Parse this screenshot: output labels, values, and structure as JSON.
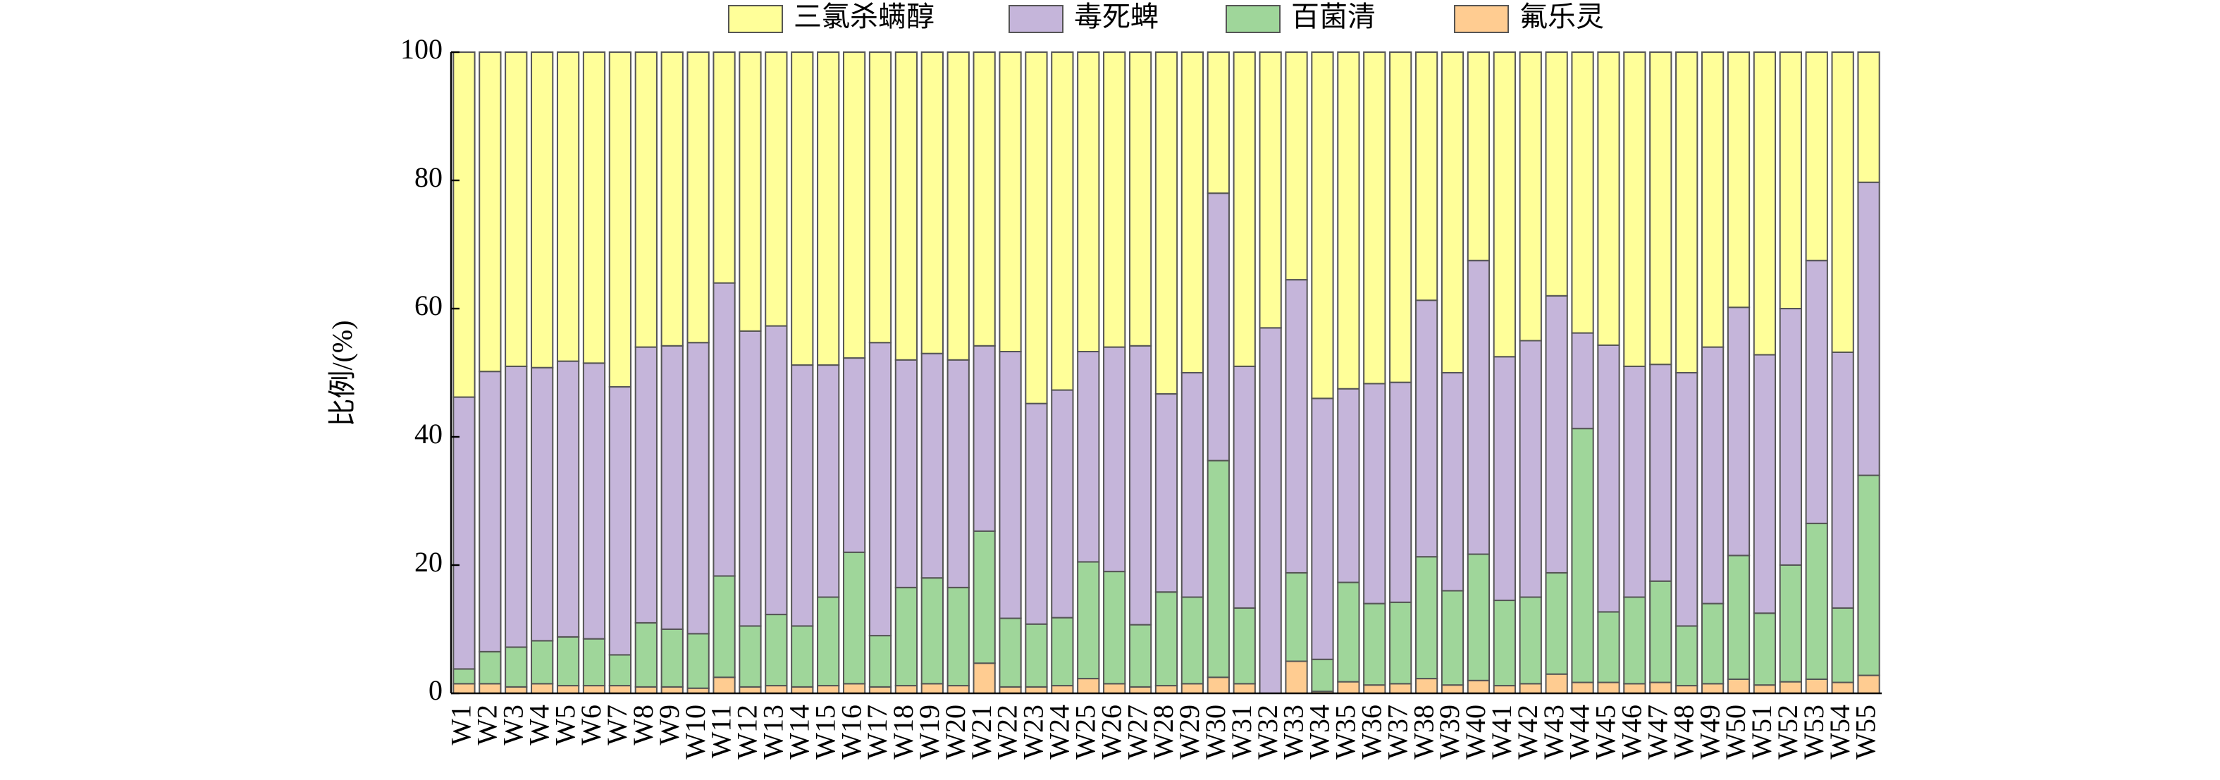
{
  "chart_data": {
    "type": "stacked_bar",
    "y_label": "比例/(%)",
    "categories": [
      "W1",
      "W2",
      "W3",
      "W4",
      "W5",
      "W6",
      "W7",
      "W8",
      "W9",
      "W10",
      "W11",
      "W12",
      "W13",
      "W14",
      "W15",
      "W16",
      "W17",
      "W18",
      "W19",
      "W20",
      "W21",
      "W22",
      "W23",
      "W24",
      "W25",
      "W26",
      "W27",
      "W28",
      "W29",
      "W30",
      "W31",
      "W32",
      "W33",
      "W34",
      "W35",
      "W36",
      "W37",
      "W38",
      "W39",
      "W40",
      "W41",
      "W42",
      "W43",
      "W44",
      "W45",
      "W46",
      "W47",
      "W48",
      "W49",
      "W50",
      "W51",
      "W52",
      "W53",
      "W54",
      "W55"
    ],
    "series": [
      {
        "name": "三氯杀螨醇",
        "color": "#ffff99",
        "values": [
          53.8,
          49.8,
          49.0,
          49.2,
          48.2,
          48.5,
          52.2,
          46.0,
          45.8,
          45.3,
          36.0,
          43.5,
          42.7,
          48.8,
          48.8,
          47.7,
          45.3,
          48.0,
          47.0,
          48.0,
          45.8,
          46.7,
          54.8,
          52.7,
          46.7,
          46.0,
          45.8,
          53.3,
          50.0,
          22.0,
          49.0,
          43.0,
          35.5,
          54.0,
          52.5,
          51.7,
          51.5,
          38.7,
          50.0,
          32.5,
          47.5,
          45.0,
          38.0,
          43.8,
          45.7,
          49.0,
          48.7,
          50.0,
          46.0,
          39.8,
          47.2,
          40.0,
          32.5,
          46.8,
          20.3
        ]
      },
      {
        "name": "毒死蜱",
        "color": "#c5b5da",
        "values": [
          42.4,
          43.7,
          43.8,
          42.6,
          43.0,
          43.0,
          41.8,
          43.0,
          44.2,
          45.4,
          45.7,
          46.0,
          45.0,
          40.7,
          36.2,
          30.3,
          45.7,
          35.5,
          35.0,
          35.5,
          28.9,
          41.6,
          34.4,
          35.5,
          32.8,
          35.0,
          43.5,
          30.9,
          35.0,
          41.7,
          37.7,
          57.0,
          45.7,
          40.7,
          30.2,
          34.3,
          34.3,
          40.0,
          34.0,
          45.8,
          38.0,
          40.0,
          43.2,
          14.9,
          41.6,
          36.0,
          33.8,
          39.5,
          40.0,
          38.7,
          40.3,
          40.0,
          41.0,
          39.9,
          45.7
        ]
      },
      {
        "name": "百菌清",
        "color": "#9fd69a",
        "values": [
          2.3,
          5.0,
          6.2,
          6.7,
          7.6,
          7.3,
          4.8,
          10.0,
          9.0,
          8.5,
          15.8,
          9.5,
          11.1,
          9.5,
          13.8,
          20.5,
          8.0,
          15.3,
          16.5,
          15.3,
          20.6,
          10.7,
          9.8,
          10.6,
          18.2,
          17.5,
          9.7,
          14.6,
          13.5,
          33.8,
          11.8,
          0,
          13.8,
          5.0,
          15.5,
          12.7,
          12.7,
          19.0,
          14.7,
          19.7,
          13.3,
          13.5,
          15.8,
          39.6,
          11.0,
          13.5,
          15.8,
          9.3,
          12.5,
          19.3,
          11.2,
          18.2,
          24.3,
          11.6,
          31.2
        ]
      },
      {
        "name": "氟乐灵",
        "color": "#ffcc91",
        "values": [
          1.5,
          1.5,
          1.0,
          1.5,
          1.2,
          1.2,
          1.2,
          1.0,
          1.0,
          0.8,
          2.5,
          1.0,
          1.2,
          1.0,
          1.2,
          1.5,
          1.0,
          1.2,
          1.5,
          1.2,
          4.7,
          1.0,
          1.0,
          1.2,
          2.3,
          1.5,
          1.0,
          1.2,
          1.5,
          2.5,
          1.5,
          0,
          5.0,
          0.3,
          1.8,
          1.3,
          1.5,
          2.3,
          1.3,
          2.0,
          1.2,
          1.5,
          3.0,
          1.7,
          1.7,
          1.5,
          1.7,
          1.2,
          1.5,
          2.2,
          1.3,
          1.8,
          2.2,
          1.7,
          2.8
        ]
      }
    ],
    "ylim": [
      0,
      100
    ],
    "yticks": [
      0,
      20,
      40,
      60,
      80,
      100
    ]
  }
}
